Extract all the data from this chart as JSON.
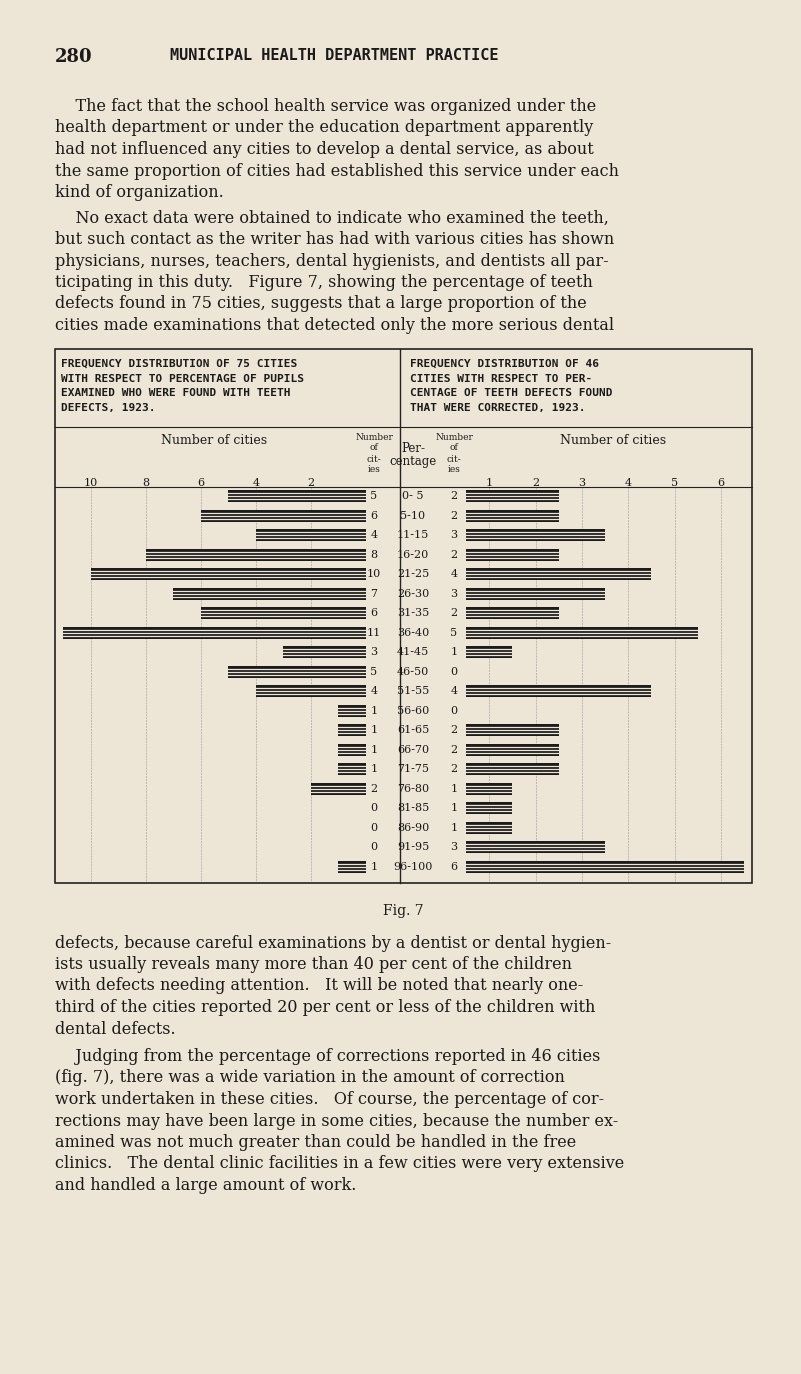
{
  "page_num": "280",
  "page_title": "MUNICIPAL HEALTH DEPARTMENT PRACTICE",
  "bg_color": "#ede5d5",
  "text_color": "#1a1a1a",
  "left_title": [
    "FREQUENCY DISTRIBUTION OF 75 CITIES",
    "WITH RESPECT TO PERCENTAGE OF PUPILS",
    "EXAMINED WHO WERE FOUND WITH TEETH",
    "DEFECTS, 1923."
  ],
  "right_title": [
    "FREQUENCY DISTRIBUTION OF 46",
    "CITIES WITH RESPECT TO PER-",
    "CENTAGE OF TEETH DEFECTS FOUND",
    "THAT WERE CORRECTED, 1923."
  ],
  "percentage_ranges": [
    "0- 5",
    "5-10",
    "11-15",
    "16-20",
    "21-25",
    "26-30",
    "31-35",
    "36-40",
    "41-45",
    "46-50",
    "51-55",
    "56-60",
    "61-65",
    "66-70",
    "71-75",
    "76-80",
    "81-85",
    "86-90",
    "91-95",
    "96-100"
  ],
  "left_counts": [
    5,
    6,
    4,
    8,
    10,
    7,
    6,
    11,
    3,
    5,
    4,
    1,
    1,
    1,
    1,
    2,
    0,
    0,
    0,
    1
  ],
  "right_counts": [
    2,
    2,
    3,
    2,
    4,
    3,
    2,
    5,
    1,
    0,
    4,
    0,
    2,
    2,
    2,
    1,
    1,
    1,
    3,
    6
  ],
  "left_axis_labels": [
    "10",
    "8",
    "6",
    "4",
    "2"
  ],
  "right_axis_labels": [
    "1",
    "2",
    "3",
    "4",
    "5",
    "6"
  ],
  "fig_caption": "Fig. 7",
  "p1_lines": [
    "    The fact that the school health service was organized under the",
    "health department or under the education department apparently",
    "had not influenced any cities to develop a dental service, as about",
    "the same proportion of cities had established this service under each",
    "kind of organization."
  ],
  "p2_lines": [
    "    No exact data were obtained to indicate who examined the teeth,",
    "but such contact as the writer has had with various cities has shown",
    "physicians, nurses, teachers, dental hygienists, and dentists all par-",
    "ticipating in this duty.   Figure 7, showing the percentage of teeth",
    "defects found in 75 cities, suggests that a large proportion of the",
    "cities made examinations that detected only the more serious dental"
  ],
  "p3_lines": [
    "defects, because careful examinations by a dentist or dental hygien-",
    "ists usually reveals many more than 40 per cent of the children",
    "with defects needing attention.   It will be noted that nearly one-",
    "third of the cities reported 20 per cent or less of the children with",
    "dental defects."
  ],
  "p4_lines": [
    "    Judging from the percentage of corrections reported in 46 cities",
    "(fig. 7), there was a wide variation in the amount of correction",
    "work undertaken in these cities.   Of course, the percentage of cor-",
    "rections may have been large in some cities, because the number ex-",
    "amined was not much greater than could be handled in the free",
    "clinics.   The dental clinic facilities in a few cities were very extensive",
    "and handled a large amount of work."
  ]
}
